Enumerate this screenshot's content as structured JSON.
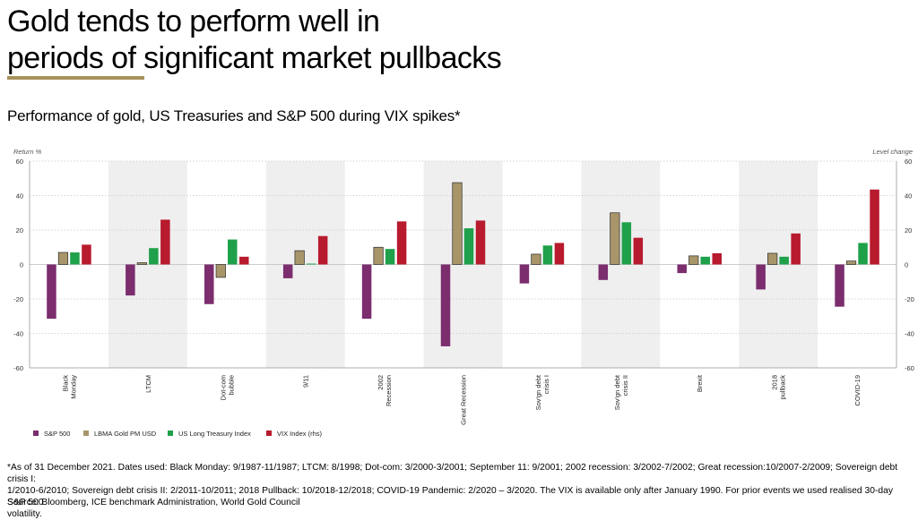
{
  "header": {
    "title_line1": "Gold tends to perform well in",
    "title_line2": "periods of significant market pullbacks",
    "subtitle": "Performance of gold, US Treasuries and S&P 500 during VIX spikes*"
  },
  "colors": {
    "accent_rule": "#a8925c",
    "shading": "#efefef"
  },
  "chart_data": {
    "type": "bar",
    "left_axis_label": "Return %",
    "right_axis_label": "Level change",
    "ylim": [
      -60,
      60
    ],
    "yticks": [
      -60,
      -40,
      -20,
      0,
      20,
      40,
      60
    ],
    "grid": "dotted horizontal",
    "legend_position": "bottom-left",
    "categories": [
      [
        "Black",
        "Monday"
      ],
      [
        "LTCM"
      ],
      [
        "Dot-com",
        "bubble"
      ],
      [
        "9/11"
      ],
      [
        "2002",
        "Recession"
      ],
      [
        "Great Recession"
      ],
      [
        "Sov'gn debt",
        "crisis I"
      ],
      [
        "Sov'gn debt",
        "crisis II"
      ],
      [
        "Brexit"
      ],
      [
        "2018",
        "pullback"
      ],
      [
        "COVID-19"
      ]
    ],
    "shaded_categories": [
      1,
      3,
      5,
      7,
      9
    ],
    "series": [
      {
        "name": "S&P 500",
        "color": "#7b2d6e",
        "values": [
          -31.5,
          -18,
          -23,
          -8,
          -31.5,
          -47.5,
          -11,
          -9,
          -5,
          -14.5,
          -24.5
        ]
      },
      {
        "name": "LBMA Gold PM USD",
        "color": "#a8966a",
        "values": [
          7,
          1,
          -7.5,
          8,
          10,
          47.5,
          6,
          30,
          5,
          6.5,
          2
        ]
      },
      {
        "name": "US Long Treasury Index",
        "color": "#1fa04a",
        "values": [
          7,
          9.5,
          14.5,
          0.5,
          9,
          21,
          11,
          24.5,
          4.5,
          4.5,
          12.5
        ]
      },
      {
        "name": "VIX Index (rhs)",
        "color": "#b81a2e",
        "values": [
          11.5,
          26,
          4.5,
          16.5,
          25,
          25.5,
          12.5,
          15.5,
          6.5,
          18,
          43.5
        ]
      }
    ]
  },
  "footnote": {
    "line1": "*As of 31 December 2021. Dates used: Black Monday: 9/1987-11/1987; LTCM: 8/1998; Dot-com: 3/2000-3/2001; September 11: 9/2001; 2002 recession: 3/2002-7/2002; Great recession:10/2007-2/2009; Sovereign debt crisis I:",
    "line2": "1/2010-6/2010; Sovereign debt crisis II: 2/2011-10/2011; 2018 Pullback: 10/2018-12/2018; COVID-19 Pandemic: 2/2020 – 3/2020. The VIX is available only after January 1990. For prior events we used realised 30-day S&P 500",
    "line3": "volatility.",
    "source": "Source: Bloomberg, ICE benchmark Administration, World Gold Council"
  }
}
